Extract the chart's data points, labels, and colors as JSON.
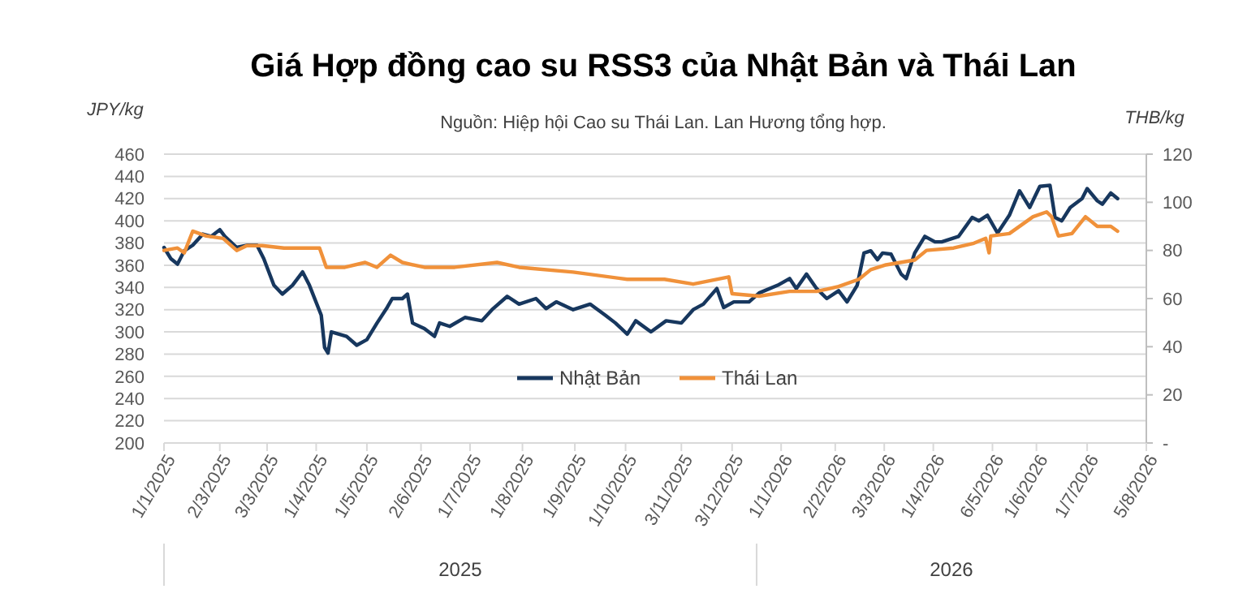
{
  "chart_data": {
    "type": "line",
    "title": "Giá Hợp đồng cao su RSS3 của Nhật Bản và Thái Lan",
    "subtitle": "Nguồn: Hiệp hội Cao su Thái Lan. Lan Hương tổng hợp.",
    "ylabel": "JPY/kg",
    "y2label": "THB/kg",
    "xlim": [
      "2025-01-01",
      "2026-08-05"
    ],
    "xticks": [
      {
        "value": "2025-01-01",
        "label": "1/1/2025"
      },
      {
        "value": "2025-02-03",
        "label": "2/3/2025"
      },
      {
        "value": "2025-03-03",
        "label": "3/3/2025"
      },
      {
        "value": "2025-04-01",
        "label": "1/4/2025"
      },
      {
        "value": "2025-05-01",
        "label": "1/5/2025"
      },
      {
        "value": "2025-06-02",
        "label": "2/6/2025"
      },
      {
        "value": "2025-07-01",
        "label": "1/7/2025"
      },
      {
        "value": "2025-08-01",
        "label": "1/8/2025"
      },
      {
        "value": "2025-09-01",
        "label": "1/9/2025"
      },
      {
        "value": "2025-10-01",
        "label": "1/10/2025"
      },
      {
        "value": "2025-11-03",
        "label": "3/11/2025"
      },
      {
        "value": "2025-12-03",
        "label": "3/12/2025"
      },
      {
        "value": "2026-01-01",
        "label": "1/1/2026"
      },
      {
        "value": "2026-02-02",
        "label": "2/2/2026"
      },
      {
        "value": "2026-03-03",
        "label": "3/3/2026"
      },
      {
        "value": "2026-04-01",
        "label": "1/4/2026"
      },
      {
        "value": "2026-05-06",
        "label": "6/5/2026"
      },
      {
        "value": "2026-06-01",
        "label": "1/6/2026"
      },
      {
        "value": "2026-07-01",
        "label": "1/7/2026"
      },
      {
        "value": "2026-08-05",
        "label": "5/8/2026"
      }
    ],
    "ylim": [
      200,
      460
    ],
    "yticks": [
      200,
      220,
      240,
      260,
      280,
      300,
      320,
      340,
      360,
      380,
      400,
      420,
      440,
      460
    ],
    "y2lim": [
      0,
      120
    ],
    "y2ticks": [
      {
        "value": 0,
        "label": "-"
      },
      20,
      40,
      60,
      80,
      100,
      120
    ],
    "grid": "y",
    "legend": "bottom",
    "marker": "none",
    "line_style": "solid",
    "annotations": [
      "2025",
      "2026"
    ],
    "series": [
      {
        "name": "Nhật Bản",
        "color": "#17375e",
        "x": [
          "2025-01-01",
          "2025-01-05",
          "2025-01-09",
          "2025-01-13",
          "2025-01-18",
          "2025-01-24",
          "2025-01-29",
          "2025-02-03",
          "2025-02-06",
          "2025-02-13",
          "2025-02-19",
          "2025-02-25",
          "2025-03-01",
          "2025-03-07",
          "2025-03-12",
          "2025-03-18",
          "2025-03-24",
          "2025-03-28",
          "2025-04-04",
          "2025-04-06",
          "2025-04-08",
          "2025-04-10",
          "2025-04-19",
          "2025-04-25",
          "2025-05-01",
          "2025-05-07",
          "2025-05-13",
          "2025-05-16",
          "2025-05-22",
          "2025-05-25",
          "2025-05-28",
          "2025-06-04",
          "2025-06-10",
          "2025-06-13",
          "2025-06-19",
          "2025-06-28",
          "2025-07-08",
          "2025-07-14",
          "2025-07-23",
          "2025-07-30",
          "2025-08-09",
          "2025-08-15",
          "2025-08-21",
          "2025-08-31",
          "2025-09-10",
          "2025-09-19",
          "2025-09-25",
          "2025-10-02",
          "2025-10-07",
          "2025-10-16",
          "2025-10-25",
          "2025-11-03",
          "2025-11-10",
          "2025-11-16",
          "2025-11-24",
          "2025-11-28",
          "2025-12-04",
          "2025-12-13",
          "2025-12-19",
          "2025-12-30",
          "2026-01-06",
          "2026-01-10",
          "2026-01-16",
          "2026-01-22",
          "2026-01-28",
          "2026-02-04",
          "2026-02-09",
          "2026-02-15",
          "2026-02-19",
          "2026-02-23",
          "2026-02-27",
          "2026-03-02",
          "2026-03-07",
          "2026-03-13",
          "2026-03-16",
          "2026-03-21",
          "2026-03-27",
          "2026-04-02",
          "2026-04-06",
          "2026-04-16",
          "2026-04-24",
          "2026-04-28",
          "2026-05-03",
          "2026-05-09",
          "2026-05-16",
          "2026-05-22",
          "2026-05-28",
          "2026-06-03",
          "2026-06-09",
          "2026-06-12",
          "2026-06-16",
          "2026-06-21",
          "2026-06-28",
          "2026-07-01",
          "2026-07-07",
          "2026-07-10",
          "2026-07-15",
          "2026-07-19"
        ],
        "values": [
          376,
          366,
          361,
          373,
          378,
          388,
          386,
          392,
          386,
          376,
          378,
          378,
          366,
          342,
          334,
          342,
          354,
          342,
          315,
          286,
          281,
          300,
          296,
          288,
          293,
          308,
          322,
          330,
          330,
          334,
          308,
          303,
          296,
          308,
          305,
          313,
          310,
          320,
          332,
          325,
          330,
          321,
          327,
          320,
          325,
          315,
          308,
          298,
          310,
          300,
          310,
          308,
          320,
          325,
          339,
          322,
          327,
          327,
          335,
          342,
          348,
          339,
          352,
          339,
          330,
          337,
          327,
          342,
          371,
          373,
          365,
          371,
          370,
          352,
          348,
          371,
          386,
          381,
          381,
          386,
          403,
          400,
          405,
          389,
          405,
          427,
          412,
          431,
          432,
          403,
          400,
          412,
          420,
          429,
          418,
          415,
          425,
          420
        ]
      },
      {
        "name": "Thái Lan",
        "color": "#f0913a",
        "axis": "y2",
        "x": [
          "2025-01-01",
          "2025-01-09",
          "2025-01-13",
          "2025-01-18",
          "2025-01-26",
          "2025-02-05",
          "2025-02-13",
          "2025-02-19",
          "2025-02-28",
          "2025-03-13",
          "2025-03-25",
          "2025-04-03",
          "2025-04-07",
          "2025-04-18",
          "2025-04-30",
          "2025-05-07",
          "2025-05-15",
          "2025-05-22",
          "2025-06-04",
          "2025-06-22",
          "2025-07-17",
          "2025-07-30",
          "2025-08-31",
          "2025-10-02",
          "2025-10-24",
          "2025-11-10",
          "2025-12-01",
          "2025-12-03",
          "2025-12-19",
          "2026-01-06",
          "2026-01-22",
          "2026-02-04",
          "2026-02-16",
          "2026-02-23",
          "2026-03-04",
          "2026-03-21",
          "2026-03-28",
          "2026-04-13",
          "2026-04-25",
          "2026-05-02",
          "2026-05-04",
          "2026-05-05",
          "2026-05-16",
          "2026-05-30",
          "2026-06-07",
          "2026-06-10",
          "2026-06-14",
          "2026-06-22",
          "2026-06-30",
          "2026-07-07",
          "2026-07-15",
          "2026-07-19"
        ],
        "values": [
          80,
          81,
          79,
          88,
          86,
          85,
          80,
          82,
          82,
          81,
          81,
          81,
          73,
          73,
          75,
          73,
          78,
          75,
          73,
          73,
          75,
          73,
          71,
          68,
          68,
          66,
          69,
          62,
          61,
          63,
          63,
          65,
          68,
          72,
          74,
          76,
          80,
          81,
          83,
          85,
          79,
          86,
          87,
          94,
          96,
          94,
          86,
          87,
          94,
          90,
          90,
          88
        ]
      }
    ]
  }
}
